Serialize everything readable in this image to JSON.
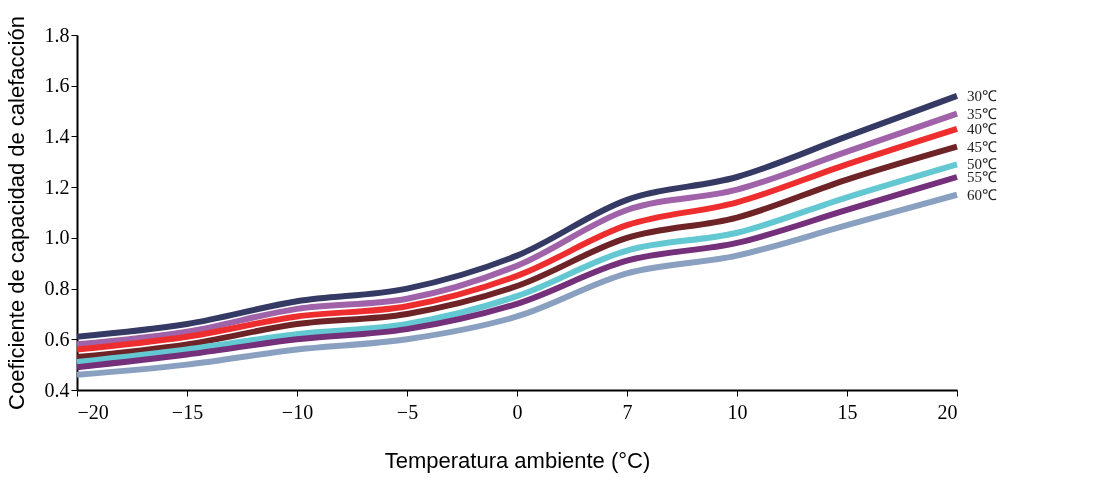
{
  "chart_data": {
    "type": "line",
    "xlabel": "Temperatura ambiente (°C)",
    "ylabel": "Coeficiente de capacidad de calefacción",
    "categories": [
      "−20",
      "−15",
      "−10",
      "−5",
      "0",
      "7",
      "10",
      "15",
      "20"
    ],
    "ylim": [
      0.4,
      1.8
    ],
    "yticks": [
      {
        "value": 0.4,
        "label": "0.4"
      },
      {
        "value": 0.6,
        "label": "0.6"
      },
      {
        "value": 0.8,
        "label": "0.8"
      },
      {
        "value": 1.0,
        "label": "1.0"
      },
      {
        "value": 1.2,
        "label": "1.2"
      },
      {
        "value": 1.4,
        "label": "1.4"
      },
      {
        "value": 1.6,
        "label": "1.6"
      },
      {
        "value": 1.8,
        "label": "1.8"
      }
    ],
    "grid": false,
    "marker": "none",
    "line_style": "solid",
    "series": [
      {
        "name": "30℃",
        "color": "#353a64",
        "values": [
          0.61,
          0.66,
          0.75,
          0.8,
          0.93,
          1.15,
          1.24,
          1.4,
          1.56
        ]
      },
      {
        "name": "35℃",
        "color": "#a062a8",
        "values": [
          0.58,
          0.63,
          0.72,
          0.76,
          0.89,
          1.11,
          1.19,
          1.34,
          1.49
        ]
      },
      {
        "name": "40℃",
        "color": "#ee2e2e",
        "values": [
          0.56,
          0.61,
          0.69,
          0.73,
          0.85,
          1.05,
          1.14,
          1.29,
          1.43
        ]
      },
      {
        "name": "45℃",
        "color": "#6e2327",
        "values": [
          0.53,
          0.58,
          0.66,
          0.7,
          0.81,
          1.0,
          1.08,
          1.23,
          1.36
        ]
      },
      {
        "name": "50℃",
        "color": "#64c8d2",
        "values": [
          0.51,
          0.56,
          0.62,
          0.66,
          0.77,
          0.95,
          1.02,
          1.16,
          1.29
        ]
      },
      {
        "name": "55℃",
        "color": "#74307a",
        "values": [
          0.49,
          0.54,
          0.6,
          0.64,
          0.74,
          0.91,
          0.98,
          1.11,
          1.24
        ]
      },
      {
        "name": "60℃",
        "color": "#8aa0c0",
        "values": [
          0.46,
          0.5,
          0.56,
          0.6,
          0.69,
          0.86,
          0.93,
          1.05,
          1.17
        ]
      }
    ]
  }
}
